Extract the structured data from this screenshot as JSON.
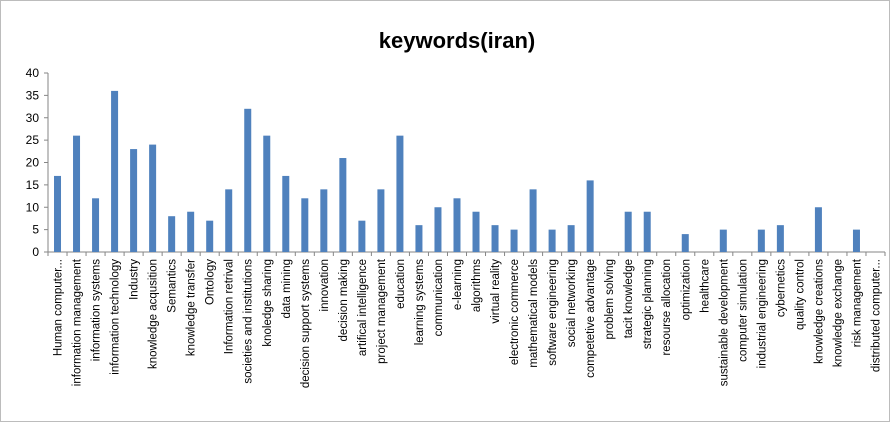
{
  "chart_data": {
    "type": "bar",
    "title": "keywords(iran)",
    "xlabel": "",
    "ylabel": "",
    "ylim": [
      0,
      40
    ],
    "y_ticks": [
      "0",
      "5",
      "10",
      "15",
      "20",
      "25",
      "30",
      "35",
      "40"
    ],
    "grid": false,
    "legend": "none",
    "bar_color": "#4f81bd",
    "categories": [
      "Human computer...",
      "information management",
      "information systems",
      "information technology",
      "Industry",
      "knowledge acqusition",
      "Semantics",
      "knowledge transfer",
      "Ontology",
      "Information retrival",
      "societies and institutions",
      "knoledge sharing",
      "data mining",
      "decision support systems",
      "innovation",
      "decision making",
      "artifical intelligence",
      "project management",
      "education",
      "learning systems",
      "communication",
      "e-learning",
      "algorithms",
      "virtual reality",
      "electronic commerce",
      "mathematical models",
      "software engineering",
      "social networking",
      "competetive advantage",
      "problem solving",
      "tacit knowledge",
      "strategic planning",
      "resourse allocation",
      "optimization",
      "healthcare",
      "sustainable development",
      "computer simulation",
      "industrial engineering",
      "cybernetics",
      "quality control",
      "knowledge creations",
      "knowledge exchange",
      "risk management",
      "distributed computer..."
    ],
    "values": [
      17,
      26,
      12,
      36,
      23,
      24,
      8,
      9,
      7,
      14,
      32,
      26,
      17,
      12,
      14,
      21,
      7,
      14,
      26,
      6,
      10,
      12,
      9,
      6,
      5,
      14,
      5,
      6,
      16,
      0,
      9,
      9,
      0,
      4,
      0,
      5,
      0,
      5,
      6,
      0,
      10,
      0,
      5,
      0
    ]
  }
}
